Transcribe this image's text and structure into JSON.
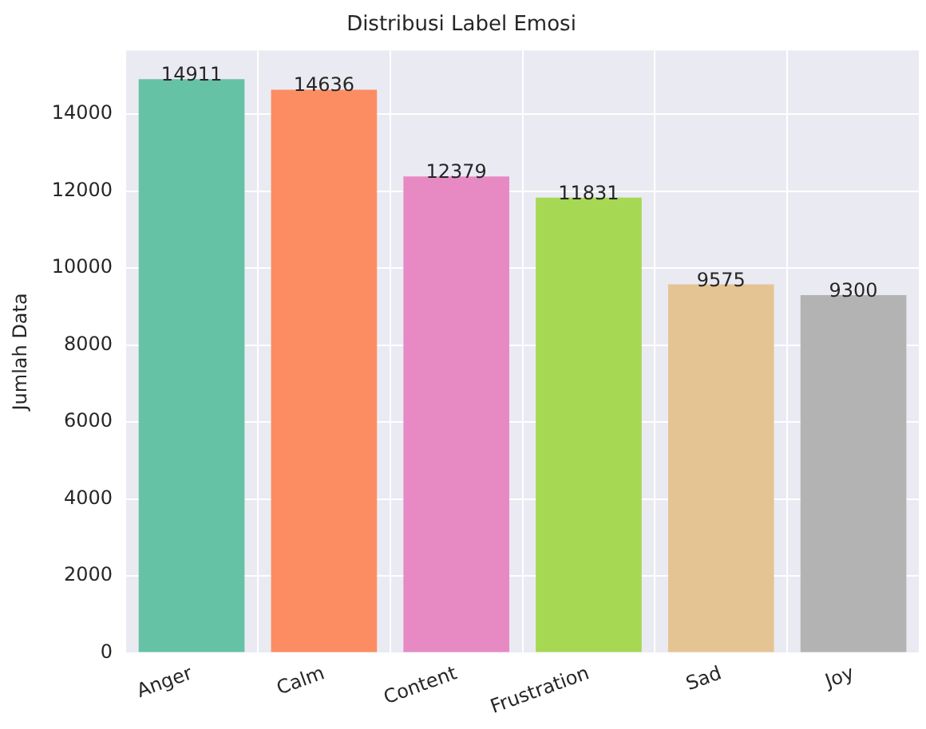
{
  "chart_data": {
    "type": "bar",
    "title": "Distribusi Label Emosi",
    "ylabel": "Jumlah Data",
    "categories": [
      "Anger",
      "Calm",
      "Content",
      "Frustration",
      "Sad",
      "Joy"
    ],
    "values": [
      14911,
      14636,
      12379,
      11831,
      9575,
      9300
    ],
    "colors": [
      "#66c2a5",
      "#fc8d62",
      "#e78ac3",
      "#a6d854",
      "#e5c494",
      "#b3b3b3"
    ],
    "ylim": [
      0,
      15656
    ],
    "yticks": [
      0,
      2000,
      4000,
      6000,
      8000,
      10000,
      12000,
      14000
    ],
    "grid": true,
    "data_labels": true
  }
}
